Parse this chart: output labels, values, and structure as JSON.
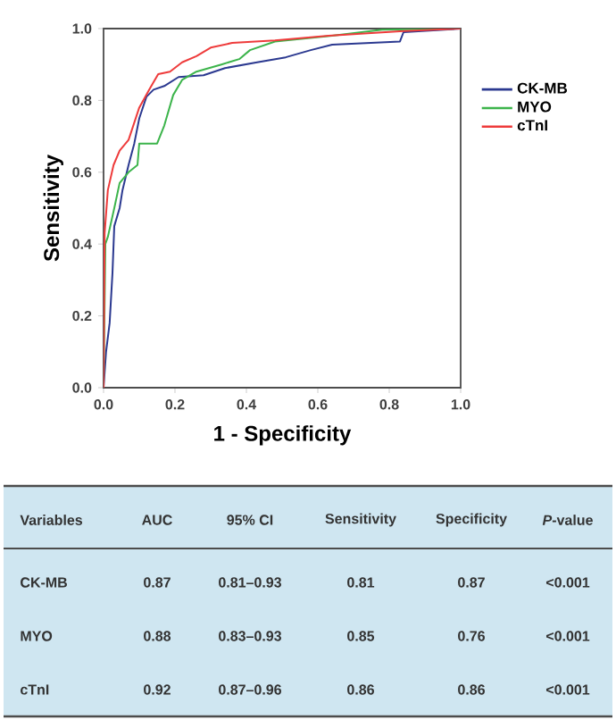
{
  "chart_data": [
    {
      "type": "line",
      "xlabel": "1 - Specificity",
      "ylabel": "Sensitivity",
      "xlim": [
        0,
        1
      ],
      "ylim": [
        0,
        1
      ],
      "xticks": [
        {
          "value": 0,
          "label": "0.0"
        },
        0.2,
        0.4,
        0.6,
        0.8,
        {
          "value": 1,
          "label": "1.0"
        }
      ],
      "yticks": [
        {
          "value": 0,
          "label": "0.0"
        },
        0.2,
        0.4,
        0.6,
        0.8,
        {
          "value": 1,
          "label": "1.0"
        }
      ],
      "legend": "right",
      "marker": "none",
      "line_style": "solid",
      "series": [
        {
          "name": "CK-MB",
          "color": "#2b3990",
          "x": [
            0,
            0.007,
            0.017,
            0.025,
            0.03,
            0.045,
            0.053,
            0.07,
            0.086,
            0.1,
            0.12,
            0.14,
            0.17,
            0.21,
            0.28,
            0.34,
            0.43,
            0.51,
            0.58,
            0.64,
            0.83,
            0.84,
            1
          ],
          "values": [
            0,
            0.1,
            0.18,
            0.32,
            0.45,
            0.5,
            0.55,
            0.62,
            0.68,
            0.75,
            0.81,
            0.83,
            0.84,
            0.865,
            0.87,
            0.89,
            0.906,
            0.92,
            0.94,
            0.955,
            0.964,
            0.99,
            1
          ]
        },
        {
          "name": "MYO",
          "color": "#3cb44b",
          "x": [
            0,
            0.005,
            0.012,
            0.03,
            0.045,
            0.07,
            0.095,
            0.1,
            0.15,
            0.17,
            0.195,
            0.22,
            0.26,
            0.33,
            0.38,
            0.41,
            0.48,
            0.64,
            0.78,
            1
          ],
          "values": [
            0,
            0.4,
            0.42,
            0.5,
            0.57,
            0.6,
            0.62,
            0.68,
            0.68,
            0.73,
            0.815,
            0.857,
            0.88,
            0.9,
            0.915,
            0.94,
            0.964,
            0.98,
            0.997,
            1
          ]
        },
        {
          "name": "cTnI",
          "color": "#ee3b3b",
          "x": [
            0,
            0.003,
            0.012,
            0.028,
            0.045,
            0.07,
            0.1,
            0.128,
            0.153,
            0.186,
            0.22,
            0.26,
            0.3,
            0.36,
            0.48,
            0.63,
            0.84,
            1
          ],
          "values": [
            0,
            0.43,
            0.55,
            0.62,
            0.66,
            0.69,
            0.78,
            0.83,
            0.873,
            0.88,
            0.906,
            0.923,
            0.947,
            0.96,
            0.967,
            0.98,
            0.993,
            1
          ]
        }
      ]
    },
    {
      "type": "other",
      "annotations": [
        "Variables",
        "AUC",
        "95% CI",
        "Sensitivity",
        "Specificity",
        "*P*-value",
        "CK-MB",
        "0.87",
        "0.81–0.93",
        "0.81",
        "0.87",
        "<0.001",
        "MYO",
        "0.88",
        "0.83–0.93",
        "0.85",
        "0.76",
        "<0.001",
        "cTnI",
        "0.92",
        "0.87–0.96",
        "0.86",
        "0.86",
        "<0.001"
      ]
    }
  ]
}
